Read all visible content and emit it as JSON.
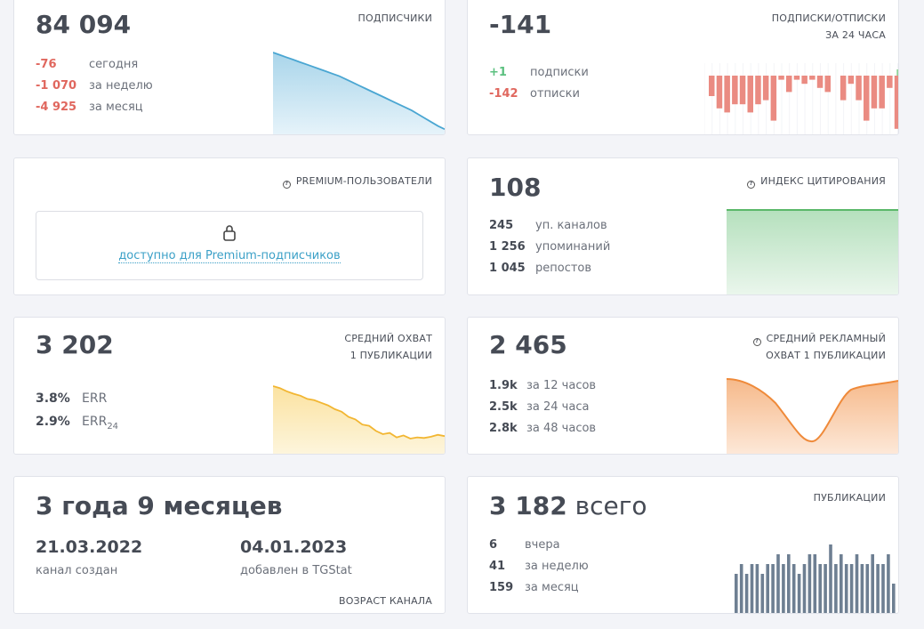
{
  "subscribers": {
    "value": "84 094",
    "label": "подписчики",
    "rows": [
      {
        "v": "-76",
        "t": "сегодня"
      },
      {
        "v": "-1 070",
        "t": "за неделю"
      },
      {
        "v": "-4 925",
        "t": "за месяц"
      }
    ],
    "trend": [
      100,
      97,
      94,
      91,
      88,
      85,
      82,
      79,
      76,
      73,
      70,
      66,
      62,
      58,
      54,
      50,
      46,
      42,
      38,
      34,
      30,
      26,
      21,
      16,
      11,
      6,
      2
    ]
  },
  "subs_unsubs": {
    "value": "-141",
    "label1": "подписки/отписки",
    "label2": "за 24 часа",
    "rows": [
      {
        "v": "+1",
        "t": "подписки"
      },
      {
        "v": "-142",
        "t": "отписки"
      }
    ],
    "values": [
      -5,
      -8,
      -9,
      -7,
      -7,
      -9,
      -7,
      -6,
      -11,
      -1,
      -4,
      -1,
      -2,
      -1,
      -3,
      -4,
      0,
      -6,
      -2,
      -6,
      -11,
      -8,
      -8,
      -3,
      -13
    ],
    "last_positive": 1,
    "colors": {
      "neg": "#ea8b82",
      "pos": "#8fd49a"
    }
  },
  "premium": {
    "label": "premium-пользователи",
    "link": "доступно для Premium-подписчиков"
  },
  "citation": {
    "value": "108",
    "label": "индекс цитирования",
    "rows": [
      {
        "v": "245",
        "t": "уп. каналов"
      },
      {
        "v": "1 256",
        "t": "упоминаний"
      },
      {
        "v": "1 045",
        "t": "репостов"
      }
    ]
  },
  "reach": {
    "value": "3 202",
    "label1": "средний охват",
    "label2": "1 публикации",
    "err": "3.8%",
    "err_label": "ERR",
    "err24": "2.9%",
    "err24_label": "ERR",
    "err24_sub": "24",
    "trend": [
      100,
      97,
      92,
      88,
      85,
      80,
      78,
      74,
      70,
      64,
      60,
      52,
      48,
      40,
      38,
      30,
      25,
      27,
      20,
      23,
      18,
      20,
      19,
      21,
      24,
      22
    ]
  },
  "ad_reach": {
    "value": "2 465",
    "label1": "средний рекламный",
    "label2": "охват 1 публикации",
    "rows": [
      {
        "v": "1.9k",
        "t": "за 12 часов"
      },
      {
        "v": "2.5k",
        "t": "за 24 часа"
      },
      {
        "v": "2.8k",
        "t": "за 48 часов"
      }
    ]
  },
  "age": {
    "value": "3 года 9 месяцев",
    "created": "21.03.2022",
    "created_label": "канал создан",
    "added": "04.01.2023",
    "added_label": "добавлен в TGStat",
    "label": "возраст канала"
  },
  "posts": {
    "value": "3 182",
    "suffix": "всего",
    "label": "публикации",
    "rows": [
      {
        "v": "6",
        "t": "вчера"
      },
      {
        "v": "41",
        "t": "за неделю"
      },
      {
        "v": "159",
        "t": "за месяц"
      }
    ],
    "values": [
      4,
      5,
      4,
      5,
      5,
      4,
      5,
      5,
      6,
      5,
      6,
      5,
      4,
      5,
      6,
      6,
      5,
      5,
      7,
      5,
      6,
      5,
      5,
      6,
      5,
      5,
      6,
      5,
      5,
      6,
      3
    ]
  }
}
